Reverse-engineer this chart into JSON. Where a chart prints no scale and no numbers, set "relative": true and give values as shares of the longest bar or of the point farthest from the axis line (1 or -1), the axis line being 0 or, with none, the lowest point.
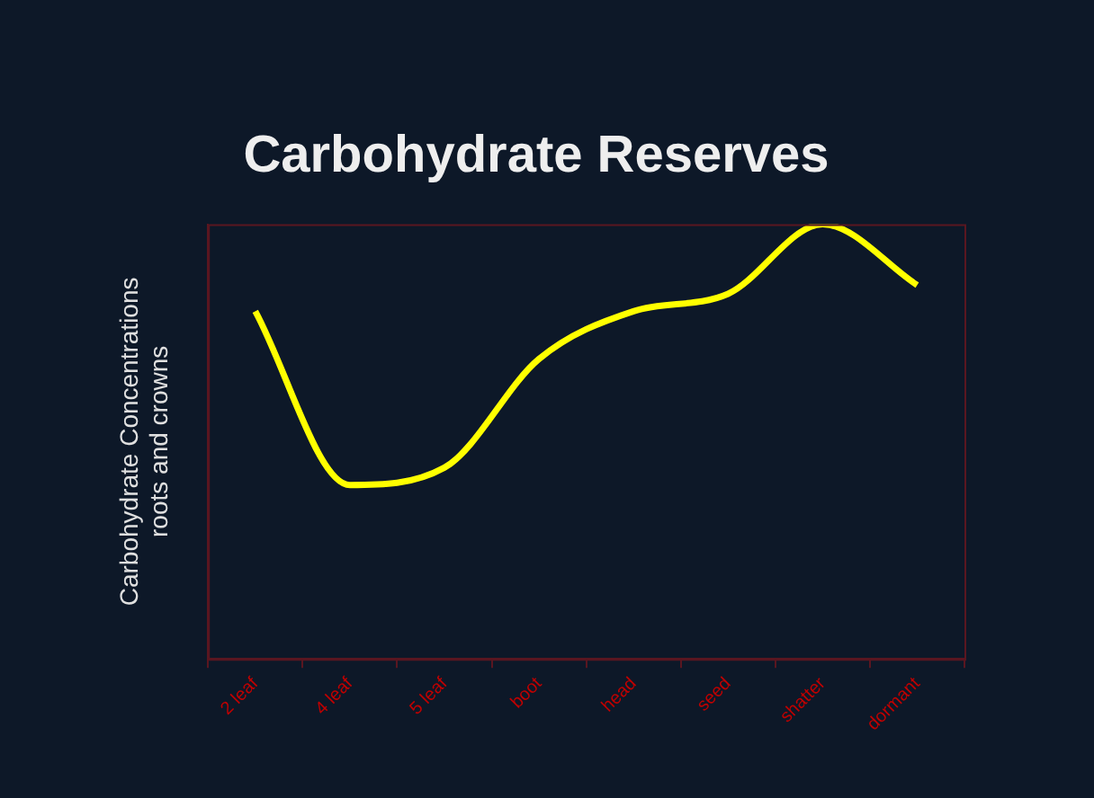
{
  "chart_data": {
    "type": "line",
    "title": "Carbohydrate Reserves",
    "ylabel": "Carbohydrate Concentrations\nroots and crowns",
    "categories": [
      "2 leaf",
      "4 leaf",
      "5 leaf",
      "boot",
      "head",
      "seed",
      "shatter",
      "dormant"
    ],
    "series": [
      {
        "color": "#ffff00",
        "values": [
          0.8,
          0.4,
          0.44,
          0.69,
          0.8,
          0.84,
          1,
          0.86
        ]
      }
    ],
    "relative": true,
    "grid": false,
    "legend": false,
    "marker": "none"
  }
}
